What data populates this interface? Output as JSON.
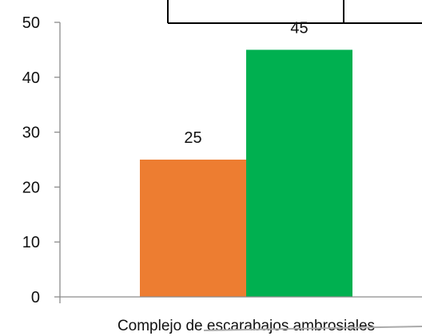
{
  "chart_data": {
    "type": "bar",
    "categories": [
      "Complejo de escarabajos ambrosiales"
    ],
    "series": [
      {
        "values": [
          25
        ],
        "color": "#ED7D31"
      },
      {
        "values": [
          45
        ],
        "color": "#00B050"
      }
    ],
    "ylim": [
      0,
      50
    ],
    "yticks": [
      0,
      10,
      20,
      30,
      40,
      50
    ],
    "data_labels": [
      "25",
      "45"
    ],
    "grid": false,
    "legend": "none"
  }
}
